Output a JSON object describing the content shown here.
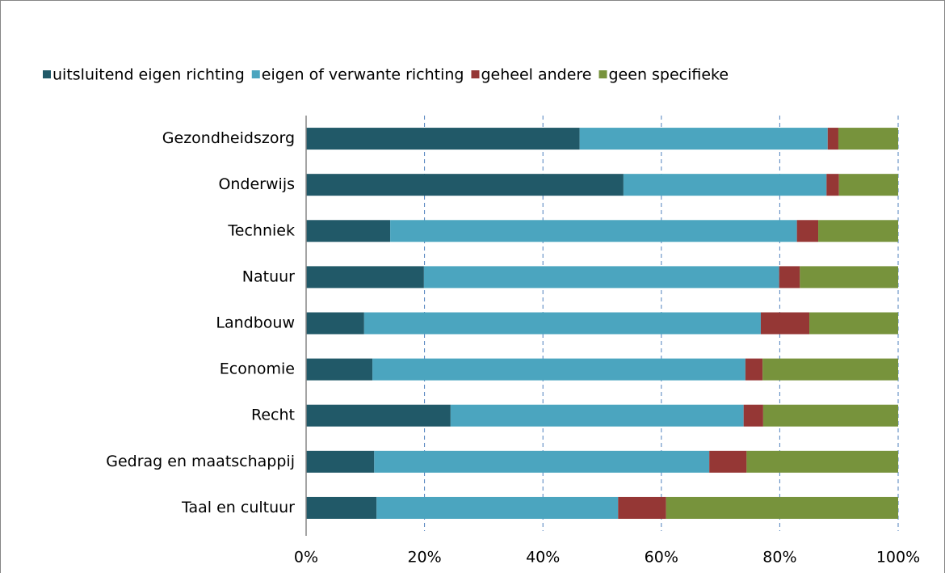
{
  "chart_data": {
    "type": "bar",
    "orientation": "horizontal",
    "stacked": true,
    "categories": [
      "Gezondheidszorg",
      "Onderwijs",
      "Techniek",
      "Natuur",
      "Landbouw",
      "Economie",
      "Recht",
      "Gedrag en maatschappij",
      "Taal en cultuur"
    ],
    "series": [
      {
        "name": "uitsluitend eigen richting",
        "color": "#215968",
        "values": [
          46.2,
          53.6,
          14.2,
          19.9,
          9.8,
          11.2,
          24.4,
          11.5,
          11.9
        ]
      },
      {
        "name": "eigen of verwante richting",
        "color": "#4ba5bf",
        "values": [
          41.9,
          34.3,
          68.7,
          60.0,
          67.0,
          63.0,
          49.5,
          56.6,
          40.8
        ]
      },
      {
        "name": "geheel andere",
        "color": "#953735",
        "values": [
          1.8,
          2.1,
          3.6,
          3.5,
          8.2,
          2.9,
          3.3,
          6.3,
          8.1
        ]
      },
      {
        "name": "geen specifieke",
        "color": "#77933c",
        "values": [
          10.1,
          10.0,
          13.5,
          16.6,
          15.0,
          22.9,
          22.8,
          25.6,
          39.2
        ]
      }
    ],
    "xlim": [
      0,
      100
    ],
    "xticks": [
      {
        "value": 0,
        "label": "0%"
      },
      {
        "value": 20,
        "label": "20%"
      },
      {
        "value": 40,
        "label": "40%"
      },
      {
        "value": 60,
        "label": "60%"
      },
      {
        "value": 80,
        "label": "80%"
      },
      {
        "value": 100,
        "label": "100%"
      }
    ],
    "grid": true,
    "legend": "top"
  }
}
